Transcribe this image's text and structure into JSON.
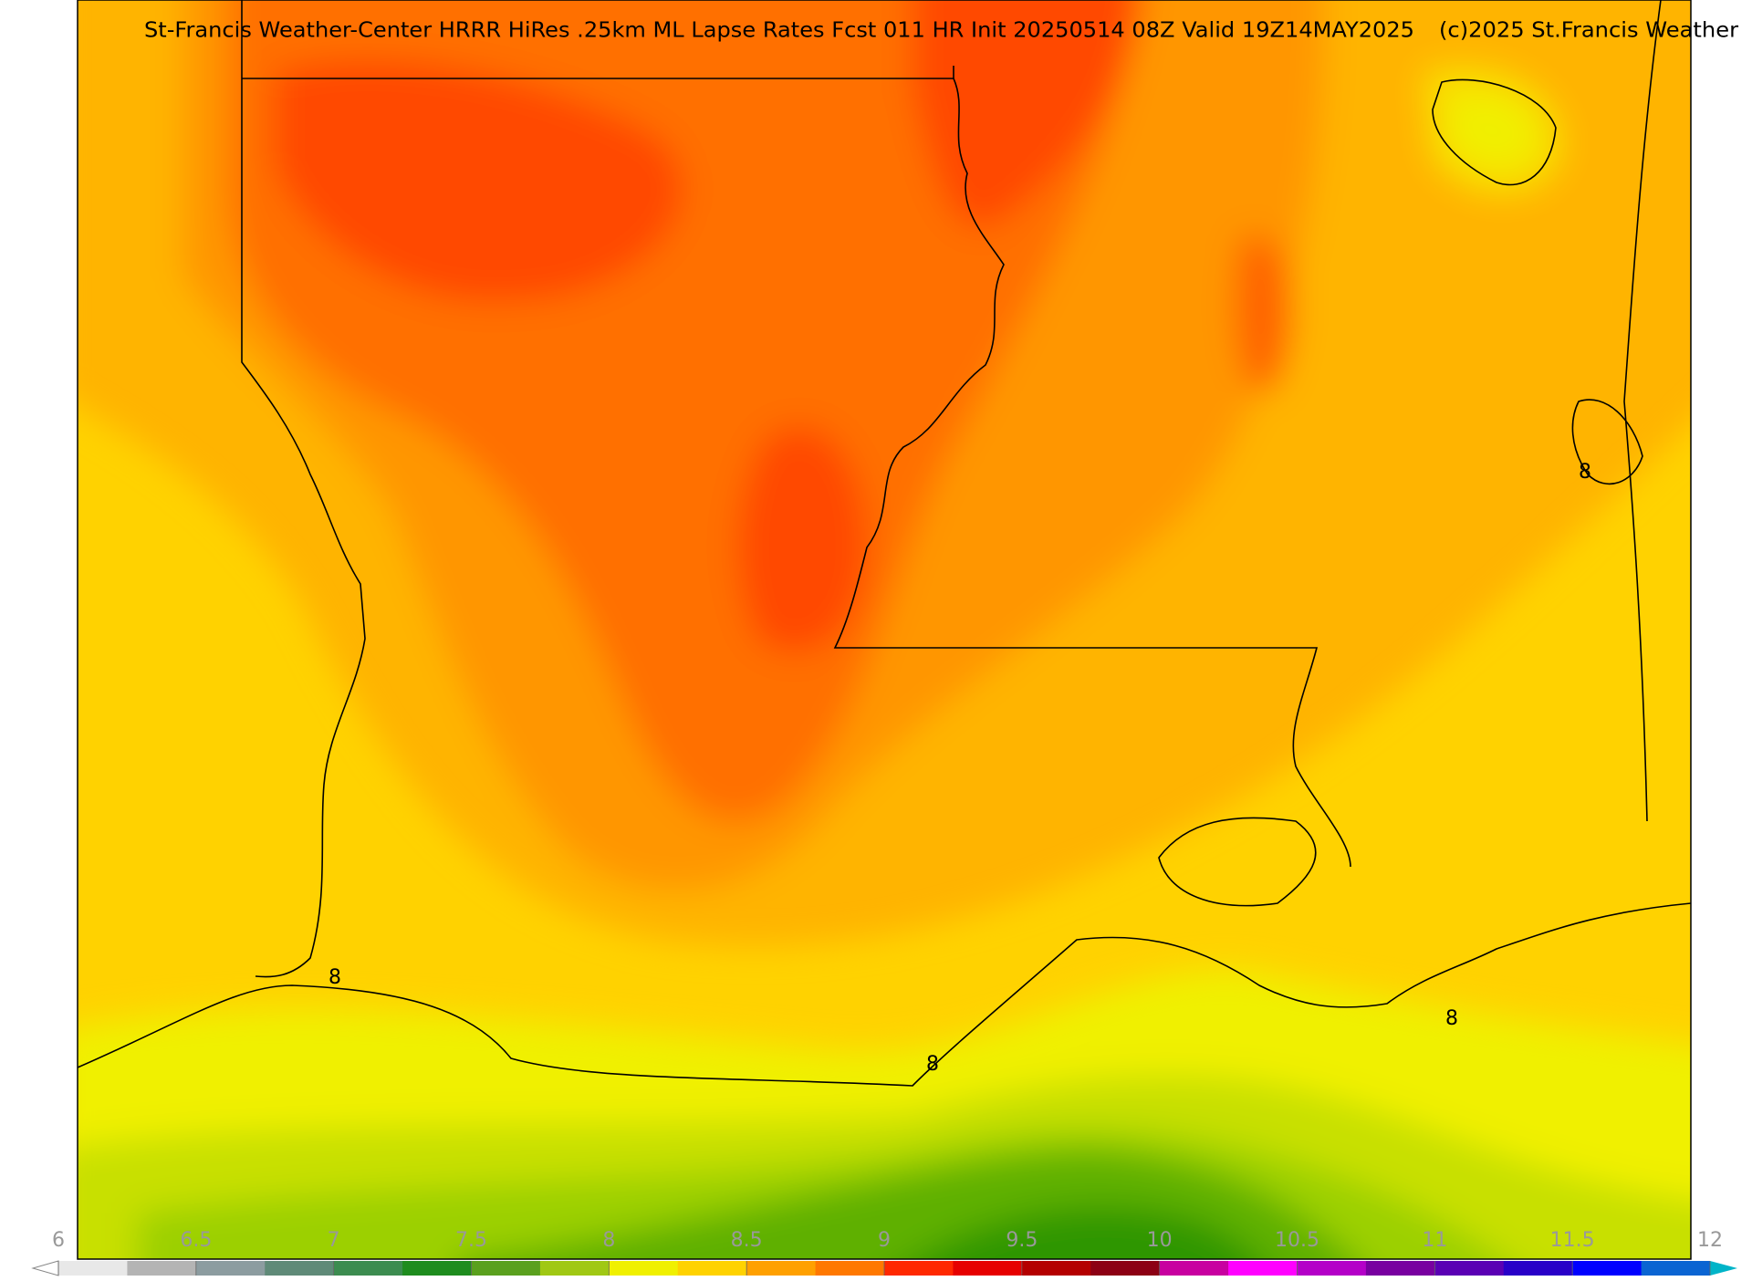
{
  "header": {
    "title": "St-Francis Weather-Center HRRR HiRes .25km ML Lapse Rates  Fcst 011 HR Init 20250514 08Z  Valid 19Z14MAY2025",
    "credit": "(c)2025 St.Francis Weather"
  },
  "contour_labels": [
    8,
    8,
    8,
    8
  ],
  "colorbar": {
    "lim": [
      6,
      12
    ],
    "ticks": [
      6,
      6.5,
      7,
      7.5,
      8,
      8.5,
      9,
      9.5,
      10,
      10.5,
      11,
      11.5,
      12
    ],
    "colors": [
      "#e8e8e8",
      "#b4b4b4",
      "#8c9ca0",
      "#5f8a78",
      "#3c8c50",
      "#1e8c1e",
      "#5aa01e",
      "#a0c814",
      "#f0f000",
      "#ffd200",
      "#ffa000",
      "#ff7800",
      "#ff2800",
      "#e60000",
      "#b40000",
      "#8c0014",
      "#c800a0",
      "#ff00ff",
      "#b400c8",
      "#7800a0",
      "#5a00b4",
      "#2800c8",
      "#0000ff",
      "#0a64d2"
    ],
    "under_color": "#ffffff",
    "over_color": "#00b4c8"
  }
}
